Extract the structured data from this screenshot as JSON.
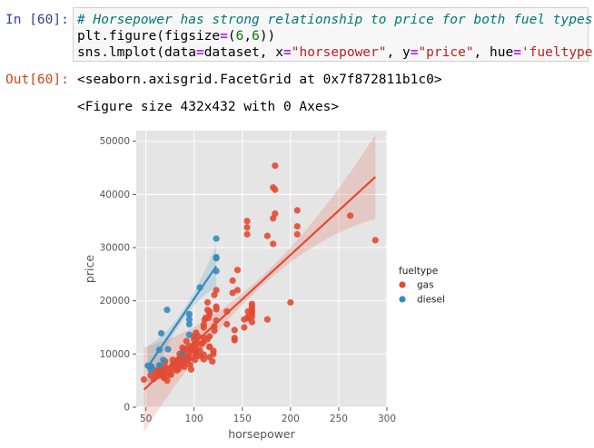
{
  "input_cell": {
    "prompt": "In [60]:",
    "line1": "# Horsepower has strong relationship to price for both fuel types",
    "line2": {
      "a": "plt.figure(figsize",
      "b": "=",
      "c": "(",
      "d": "6",
      "e": ",",
      "f": "6",
      "g": "))"
    },
    "line3": {
      "a": "sns.lmplot(data",
      "b": "=",
      "c": "dataset, x",
      "d": "=",
      "e": "\"horsepower\"",
      "f": ", y",
      "g": "=",
      "h": "\"price\"",
      "i": ", hue",
      "j": "=",
      "k": "'fueltype'",
      "l": ")"
    }
  },
  "output_cell": {
    "prompt": "Out[60]:",
    "line1": "<seaborn.axisgrid.FacetGrid at 0x7f872811b1c0>",
    "line2": "<Figure size 432x432 with 0 Axes>"
  },
  "colors": {
    "gas": "#e24a33",
    "diesel": "#348abd",
    "plot_bg": "#e5e5e5",
    "grid": "#ffffff"
  },
  "chart_data": {
    "type": "scatter",
    "xlabel": "horsepower",
    "ylabel": "price",
    "xlim": [
      40,
      300
    ],
    "ylim": [
      0,
      52000
    ],
    "xticks": [
      "50",
      "100",
      "150",
      "200",
      "250",
      "300"
    ],
    "yticks": [
      "0",
      "10000",
      "20000",
      "30000",
      "40000",
      "50000"
    ],
    "grid": true,
    "legend_title": "fueltype",
    "legend_placement": "right",
    "series": [
      {
        "name": "gas",
        "fit": {
          "x0": 48,
          "y0": 3300,
          "x1": 288,
          "y1": 43300
        },
        "points": [
          [
            48,
            5200
          ],
          [
            55,
            6000
          ],
          [
            58,
            5300
          ],
          [
            60,
            6500
          ],
          [
            62,
            7000
          ],
          [
            62,
            5800
          ],
          [
            64,
            6800
          ],
          [
            65,
            6400
          ],
          [
            65,
            7700
          ],
          [
            68,
            5700
          ],
          [
            68,
            6200
          ],
          [
            68,
            7300
          ],
          [
            69,
            5500
          ],
          [
            70,
            6900
          ],
          [
            70,
            7600
          ],
          [
            70,
            8600
          ],
          [
            72,
            5000
          ],
          [
            73,
            6000
          ],
          [
            76,
            6100
          ],
          [
            76,
            6700
          ],
          [
            76,
            7400
          ],
          [
            78,
            8100
          ],
          [
            78,
            8900
          ],
          [
            80,
            7800
          ],
          [
            82,
            6900
          ],
          [
            82,
            8300
          ],
          [
            84,
            7200
          ],
          [
            84,
            9000
          ],
          [
            85,
            10000
          ],
          [
            86,
            7900
          ],
          [
            86,
            8700
          ],
          [
            86,
            9500
          ],
          [
            88,
            8500
          ],
          [
            88,
            9800
          ],
          [
            88,
            10400
          ],
          [
            88,
            11200
          ],
          [
            90,
            7600
          ],
          [
            90,
            8200
          ],
          [
            90,
            9100
          ],
          [
            90,
            11000
          ],
          [
            92,
            8800
          ],
          [
            92,
            9600
          ],
          [
            92,
            12400
          ],
          [
            94,
            9100
          ],
          [
            95,
            10300
          ],
          [
            95,
            11500
          ],
          [
            96,
            8000
          ],
          [
            97,
            9300
          ],
          [
            97,
            10800
          ],
          [
            97,
            7100
          ],
          [
            100,
            11800
          ],
          [
            100,
            10600
          ],
          [
            100,
            12800
          ],
          [
            100,
            13300
          ],
          [
            101,
            8900
          ],
          [
            102,
            9800
          ],
          [
            102,
            10200
          ],
          [
            102,
            11000
          ],
          [
            102,
            14000
          ],
          [
            104,
            12000
          ],
          [
            104,
            13400
          ],
          [
            106,
            9600
          ],
          [
            106,
            10700
          ],
          [
            108,
            11900
          ],
          [
            110,
            9000
          ],
          [
            110,
            9900
          ],
          [
            110,
            12300
          ],
          [
            110,
            13100
          ],
          [
            110,
            15000
          ],
          [
            110,
            15500
          ],
          [
            111,
            16400
          ],
          [
            112,
            16800
          ],
          [
            114,
            12800
          ],
          [
            114,
            18300
          ],
          [
            114,
            19700
          ],
          [
            115,
            16800
          ],
          [
            116,
            9400
          ],
          [
            116,
            11300
          ],
          [
            116,
            11400
          ],
          [
            116,
            13300
          ],
          [
            116,
            17500
          ],
          [
            116,
            18000
          ],
          [
            119,
            8600
          ],
          [
            120,
            10000
          ],
          [
            120,
            10600
          ],
          [
            121,
            14400
          ],
          [
            121,
            15200
          ],
          [
            121,
            21100
          ],
          [
            123,
            16300
          ],
          [
            123,
            18400
          ],
          [
            123,
            18900
          ],
          [
            123,
            22000
          ],
          [
            134,
            15600
          ],
          [
            134,
            18000
          ],
          [
            140,
            21500
          ],
          [
            140,
            23800
          ],
          [
            142,
            12600
          ],
          [
            142,
            14500
          ],
          [
            142,
            13000
          ],
          [
            145,
            22000
          ],
          [
            145,
            25800
          ],
          [
            152,
            16500
          ],
          [
            152,
            15000
          ],
          [
            155,
            32500
          ],
          [
            155,
            33800
          ],
          [
            155,
            35000
          ],
          [
            156,
            16700
          ],
          [
            156,
            17000
          ],
          [
            156,
            18000
          ],
          [
            160,
            16000
          ],
          [
            160,
            17000
          ],
          [
            160,
            17600
          ],
          [
            160,
            18100
          ],
          [
            160,
            18500
          ],
          [
            160,
            19000
          ],
          [
            160,
            19400
          ],
          [
            176,
            16500
          ],
          [
            176,
            32200
          ],
          [
            182,
            30700
          ],
          [
            182,
            35500
          ],
          [
            182,
            41300
          ],
          [
            184,
            36400
          ],
          [
            184,
            40900
          ],
          [
            184,
            45400
          ],
          [
            200,
            19700
          ],
          [
            207,
            34000
          ],
          [
            207,
            32500
          ],
          [
            207,
            37000
          ],
          [
            262,
            36000
          ],
          [
            288,
            31400
          ]
        ]
      },
      {
        "name": "diesel",
        "fit": {
          "x0": 52,
          "y0": 7600,
          "x1": 123,
          "y1": 26500
        },
        "points": [
          [
            52,
            7800
          ],
          [
            55,
            7100
          ],
          [
            55,
            7700
          ],
          [
            56,
            7600
          ],
          [
            64,
            7900
          ],
          [
            64,
            10800
          ],
          [
            66,
            13900
          ],
          [
            68,
            8900
          ],
          [
            72,
            18300
          ],
          [
            73,
            10900
          ],
          [
            88,
            10000
          ],
          [
            95,
            16500
          ],
          [
            95,
            13600
          ],
          [
            95,
            15600
          ],
          [
            95,
            17500
          ],
          [
            106,
            22500
          ],
          [
            123,
            25600
          ],
          [
            123,
            28000
          ],
          [
            123,
            28200
          ],
          [
            123,
            31700
          ]
        ]
      }
    ]
  }
}
